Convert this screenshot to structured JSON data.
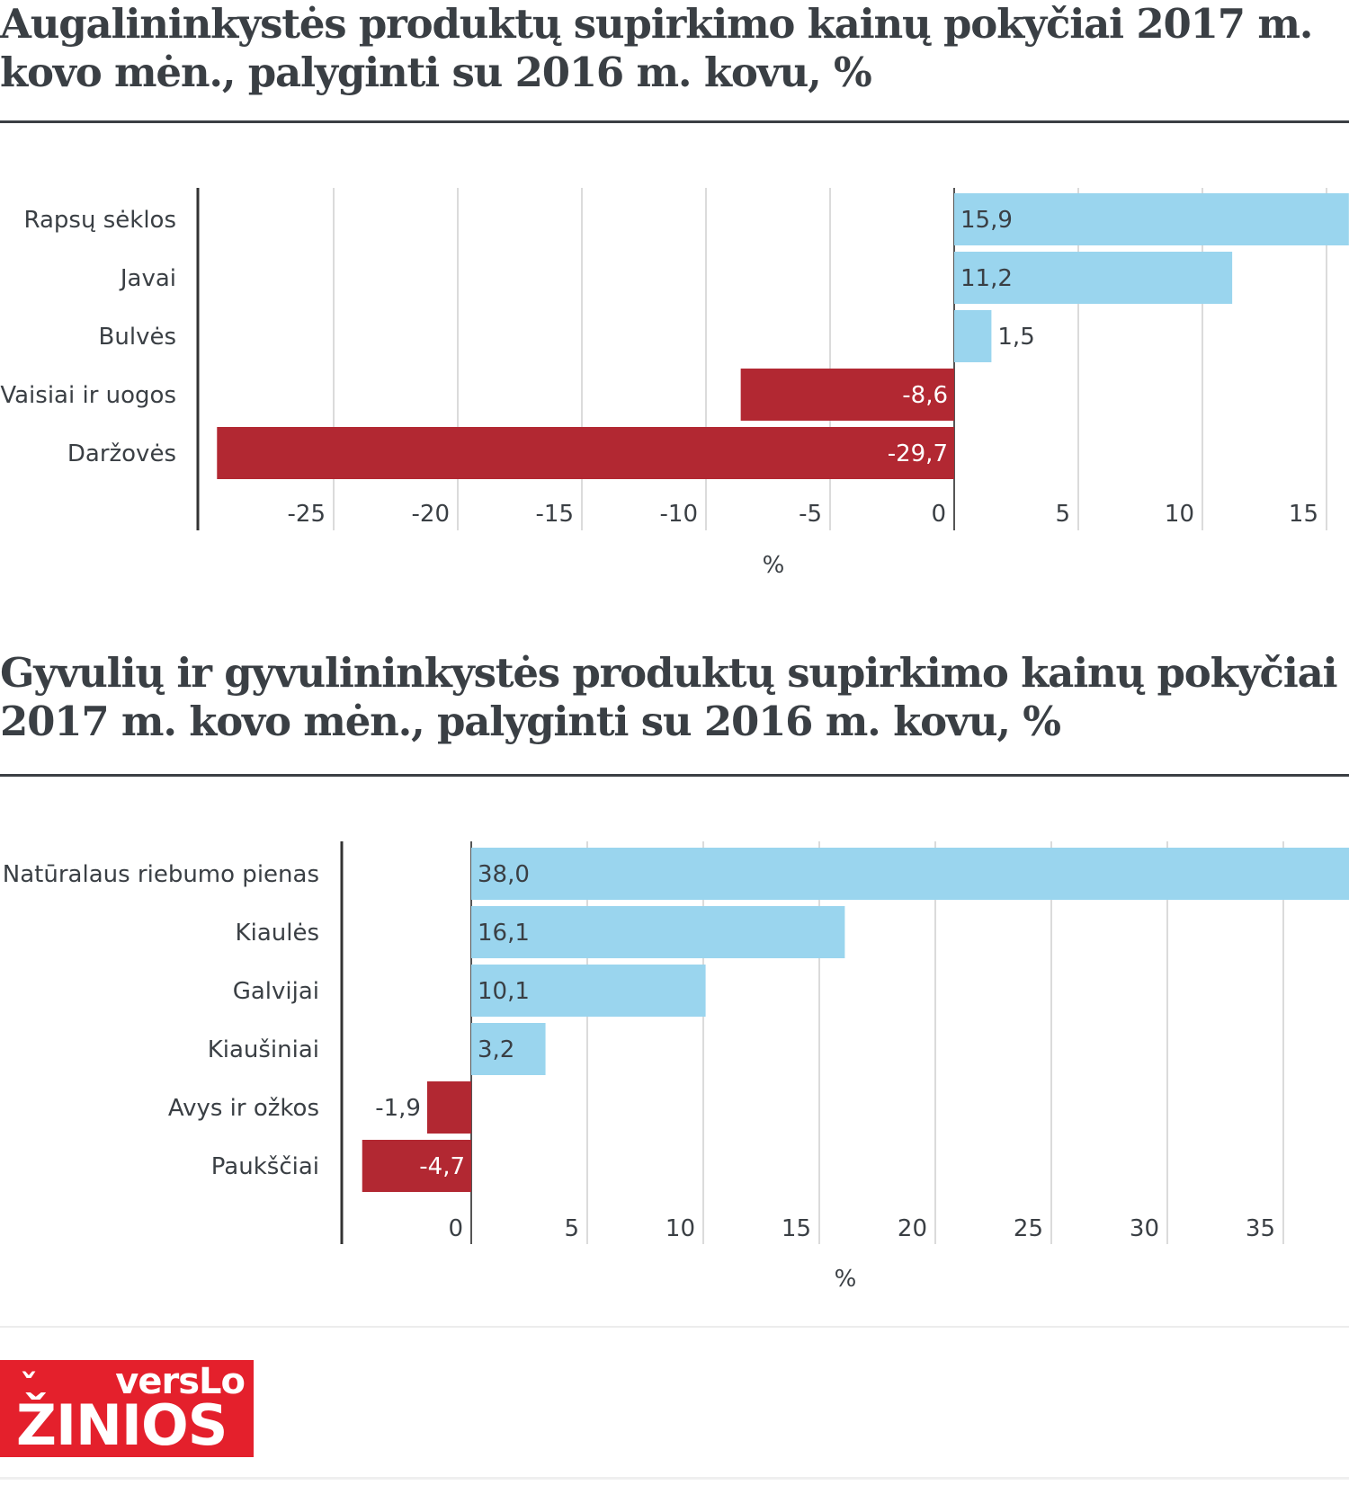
{
  "colors": {
    "positive": "#9ad5ee",
    "negative": "#b22832",
    "axis": "#333333",
    "grid": "#cfcfcf",
    "text": "#3a3f44"
  },
  "logo": {
    "top": "versLo",
    "bottom": "ŽINIOS"
  },
  "chart_data": [
    {
      "type": "bar",
      "orientation": "horizontal",
      "title": "Augalininkystės produktų supirkimo kainų pokyčiai 2017 m. kovo mėn., palyginti su 2016 m. kovu, %",
      "xlabel": "%",
      "ylabel": "",
      "categories": [
        "Rapsų sėklos",
        "Javai",
        "Bulvės",
        "Vaisiai ir uogos",
        "Daržovės"
      ],
      "values": [
        15.9,
        11.2,
        1.5,
        -8.6,
        -29.7
      ],
      "data_labels": [
        "15,9",
        "11,2",
        "1,5",
        "-8,6",
        "-29,7"
      ],
      "xlim": [
        -30.5,
        16
      ],
      "xticks": [
        -25,
        -20,
        -15,
        -10,
        -5,
        0,
        5,
        10,
        15
      ],
      "xtick_labels": [
        "-25",
        "-20",
        "-15",
        "-10",
        "-5",
        "0",
        "5",
        "10",
        "15"
      ],
      "grid": true
    },
    {
      "type": "bar",
      "orientation": "horizontal",
      "title": "Gyvulių ir gyvulininkystės produktų supirkimo kainų pokyčiai 2017 m. kovo mėn., palyginti su 2016 m. kovu, %",
      "xlabel": "%",
      "ylabel": "",
      "categories": [
        "Natūralaus riebumo pienas",
        "Kiaulės",
        "Galvijai",
        "Kiaušiniai",
        "Avys ir ožkos",
        "Paukščiai"
      ],
      "values": [
        38.0,
        16.1,
        10.1,
        3.2,
        -1.9,
        -4.7
      ],
      "data_labels": [
        "38,0",
        "16,1",
        "10,1",
        "3,2",
        "-1,9",
        "-4,7"
      ],
      "xlim": [
        -5.6,
        38
      ],
      "xticks": [
        0,
        5,
        10,
        15,
        20,
        25,
        30,
        35
      ],
      "xtick_labels": [
        "0",
        "5",
        "10",
        "15",
        "20",
        "25",
        "30",
        "35"
      ],
      "grid": true
    }
  ]
}
